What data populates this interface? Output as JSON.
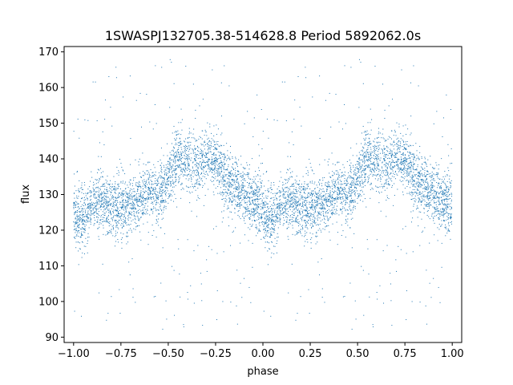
{
  "chart_data": {
    "type": "scatter",
    "title": "1SWASPJ132705.38-514628.8 Period 5892062.0s",
    "xlabel": "phase",
    "ylabel": "flux",
    "xlim": [
      -1.05,
      1.05
    ],
    "ylim": [
      88.5,
      171.5
    ],
    "xticks": [
      -1.0,
      -0.75,
      -0.5,
      -0.25,
      0.0,
      0.25,
      0.5,
      0.75,
      1.0
    ],
    "xtick_labels": [
      "−1.00",
      "−0.75",
      "−0.50",
      "−0.25",
      "0.00",
      "0.25",
      "0.50",
      "0.75",
      "1.00"
    ],
    "yticks": [
      90,
      100,
      110,
      120,
      130,
      140,
      150,
      160,
      170
    ],
    "ytick_labels": [
      "90",
      "100",
      "110",
      "120",
      "130",
      "140",
      "150",
      "160",
      "170"
    ],
    "grid": false,
    "marker_color": "#1f77b4",
    "phase_range": [
      -1.0,
      1.0
    ],
    "flux_profile": {
      "phase": [
        0.0,
        0.05,
        0.1,
        0.15,
        0.2,
        0.25,
        0.3,
        0.35,
        0.4,
        0.45,
        0.5,
        0.55,
        0.6,
        0.65,
        0.7,
        0.75,
        0.8,
        0.85,
        0.9,
        0.95,
        1.0
      ],
      "center": [
        124,
        123,
        128,
        128,
        126,
        126,
        127,
        128,
        131,
        130,
        134,
        140,
        139,
        138,
        141,
        139,
        134,
        132,
        130,
        128,
        127
      ],
      "spread": [
        7,
        8,
        6,
        6,
        7,
        7,
        7,
        6,
        6,
        6,
        6,
        7,
        7,
        7,
        7,
        7,
        8,
        7,
        7,
        7,
        7
      ]
    },
    "outlier_range": [
      92,
      168
    ]
  }
}
